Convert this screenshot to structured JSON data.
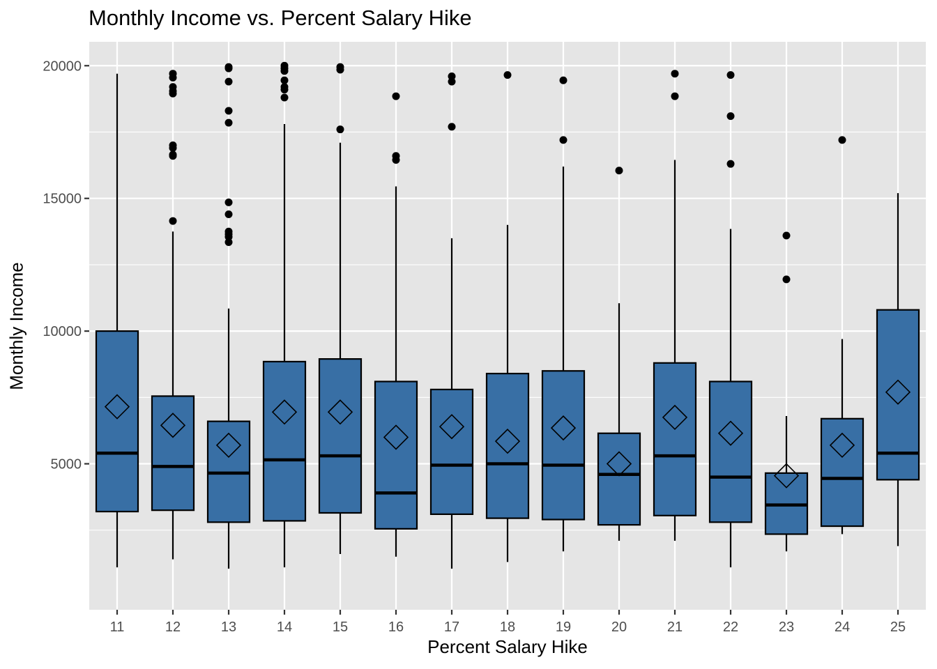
{
  "chart_data": {
    "type": "boxplot",
    "title": "Monthly Income vs. Percent Salary Hike",
    "xlabel": "Percent Salary Hike",
    "ylabel": "Monthly Income",
    "ylim": [
      -500,
      20900
    ],
    "yticks": [
      5000,
      10000,
      15000,
      20000
    ],
    "y_minor_ticks": [
      2500,
      7500,
      12500,
      17500
    ],
    "grid": true,
    "legend": "none",
    "colors": {
      "panel": "#e5e5e5",
      "grid": "#ffffff",
      "box_fill": "#386fa5",
      "line": "#000000"
    },
    "mean_marker": "hollow diamond",
    "categories": [
      "11",
      "12",
      "13",
      "14",
      "15",
      "16",
      "17",
      "18",
      "19",
      "20",
      "21",
      "22",
      "23",
      "24",
      "25"
    ],
    "boxes": [
      {
        "x": "11",
        "whisker_low": 1100,
        "q1": 3200,
        "median": 5400,
        "q3": 10000,
        "whisker_high": 19700,
        "mean": 7150,
        "outliers": []
      },
      {
        "x": "12",
        "whisker_low": 1400,
        "q1": 3250,
        "median": 4900,
        "q3": 7550,
        "whisker_high": 13750,
        "mean": 6450,
        "outliers": [
          14150,
          16600,
          16650,
          16900,
          17000,
          18950,
          19050,
          19200,
          19550,
          19700
        ]
      },
      {
        "x": "13",
        "whisker_low": 1050,
        "q1": 2800,
        "median": 4650,
        "q3": 6600,
        "whisker_high": 10850,
        "mean": 5700,
        "outliers": [
          13350,
          13550,
          13650,
          13750,
          14400,
          14850,
          17850,
          18300,
          19400,
          19900,
          19950
        ]
      },
      {
        "x": "14",
        "whisker_low": 1100,
        "q1": 2850,
        "median": 5150,
        "q3": 8850,
        "whisker_high": 17800,
        "mean": 6950,
        "outliers": [
          18800,
          19100,
          19200,
          19450,
          19800,
          19900,
          20000
        ]
      },
      {
        "x": "15",
        "whisker_low": 1600,
        "q1": 3150,
        "median": 5300,
        "q3": 8950,
        "whisker_high": 17100,
        "mean": 6950,
        "outliers": [
          17600,
          19850,
          19950
        ]
      },
      {
        "x": "16",
        "whisker_low": 1500,
        "q1": 2550,
        "median": 3900,
        "q3": 8100,
        "whisker_high": 15450,
        "mean": 6000,
        "outliers": [
          16450,
          16600,
          18850
        ]
      },
      {
        "x": "17",
        "whisker_low": 1050,
        "q1": 3100,
        "median": 4950,
        "q3": 7800,
        "whisker_high": 13500,
        "mean": 6400,
        "outliers": [
          17700,
          19400,
          19600
        ]
      },
      {
        "x": "18",
        "whisker_low": 1300,
        "q1": 2950,
        "median": 5000,
        "q3": 8400,
        "whisker_high": 14000,
        "mean": 5850,
        "outliers": [
          19650
        ]
      },
      {
        "x": "19",
        "whisker_low": 1700,
        "q1": 2900,
        "median": 4950,
        "q3": 8500,
        "whisker_high": 16200,
        "mean": 6350,
        "outliers": [
          17200,
          19450
        ]
      },
      {
        "x": "20",
        "whisker_low": 2100,
        "q1": 2700,
        "median": 4600,
        "q3": 6150,
        "whisker_high": 11050,
        "mean": 5000,
        "outliers": [
          16050
        ]
      },
      {
        "x": "21",
        "whisker_low": 2100,
        "q1": 3050,
        "median": 5300,
        "q3": 8800,
        "whisker_high": 16450,
        "mean": 6750,
        "outliers": [
          18850,
          19700
        ]
      },
      {
        "x": "22",
        "whisker_low": 1100,
        "q1": 2800,
        "median": 4500,
        "q3": 8100,
        "whisker_high": 13850,
        "mean": 6150,
        "outliers": [
          16300,
          18100,
          19650
        ]
      },
      {
        "x": "23",
        "whisker_low": 1700,
        "q1": 2350,
        "median": 3450,
        "q3": 4650,
        "whisker_high": 6800,
        "mean": 4550,
        "outliers": [
          11950,
          13600
        ]
      },
      {
        "x": "24",
        "whisker_low": 2350,
        "q1": 2650,
        "median": 4450,
        "q3": 6700,
        "whisker_high": 9700,
        "mean": 5700,
        "outliers": [
          17200
        ]
      },
      {
        "x": "25",
        "whisker_low": 1900,
        "q1": 4400,
        "median": 5400,
        "q3": 10800,
        "whisker_high": 15200,
        "mean": 7700,
        "outliers": []
      }
    ]
  }
}
